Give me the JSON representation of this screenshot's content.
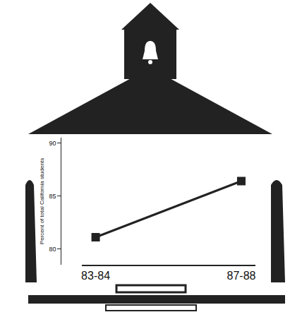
{
  "chart_data": {
    "type": "line",
    "y_label": "Percent of total California students",
    "categories": [
      "83-84",
      "87-88"
    ],
    "values": [
      81.1,
      86.4
    ],
    "color": "#222222",
    "marker": "square",
    "ylim": [
      78.5,
      90.5
    ],
    "yticks": [
      80,
      85,
      90
    ],
    "grid": false
  }
}
